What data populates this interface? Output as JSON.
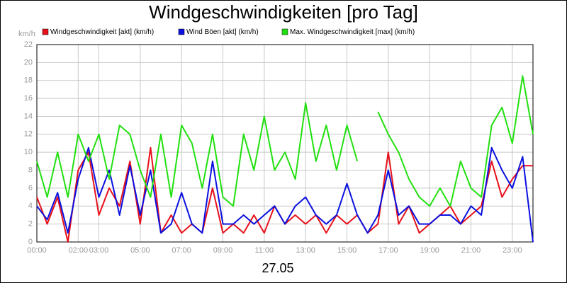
{
  "chart_data": {
    "type": "line",
    "title": "Windgeschwindigkeiten [pro Tag]",
    "y_unit": "km/h",
    "xlabel": "27.05",
    "x": [
      0,
      0.5,
      1,
      1.5,
      2,
      2.5,
      3,
      3.5,
      4,
      4.5,
      5,
      5.5,
      6,
      6.5,
      7,
      7.5,
      8,
      8.5,
      9,
      9.5,
      10,
      10.5,
      11,
      11.5,
      12,
      12.5,
      13,
      13.5,
      14,
      14.5,
      15,
      15.5,
      16,
      16.5,
      17,
      17.5,
      18,
      18.5,
      19,
      19.5,
      20,
      20.5,
      21,
      21.5,
      22,
      22.5,
      23,
      23.5,
      24
    ],
    "xlim": [
      0,
      24
    ],
    "xticks": [
      {
        "value": 0,
        "label": "00:00"
      },
      {
        "value": 2,
        "label": "02:00"
      },
      {
        "value": 3,
        "label": "03:00"
      },
      {
        "value": 5,
        "label": "05:00"
      },
      {
        "value": 7,
        "label": "07:00"
      },
      {
        "value": 9,
        "label": "09:00"
      },
      {
        "value": 11,
        "label": "11:00"
      },
      {
        "value": 13,
        "label": "13:00"
      },
      {
        "value": 15,
        "label": "15:00"
      },
      {
        "value": 17,
        "label": "17:00"
      },
      {
        "value": 19,
        "label": "19:00"
      },
      {
        "value": 21,
        "label": "21:00"
      },
      {
        "value": 23,
        "label": "23:00"
      }
    ],
    "ylim": [
      0,
      22
    ],
    "yticks": [
      0,
      2,
      4,
      6,
      8,
      10,
      12,
      14,
      16,
      18,
      20,
      22
    ],
    "grid": true,
    "series": [
      {
        "name": "Windgeschwindigkeit [akt] (km/h)",
        "color": "#e8101a",
        "values": [
          5,
          2,
          5,
          0,
          8,
          10,
          3,
          6,
          4,
          9,
          2,
          10.5,
          1,
          3,
          1,
          2,
          1,
          6,
          1,
          2,
          1,
          3,
          1,
          4,
          2,
          3,
          2,
          3,
          1,
          3,
          2,
          3,
          1,
          2,
          10,
          2,
          4,
          1,
          2,
          3,
          4,
          2,
          3,
          4,
          9,
          5,
          7,
          8.5,
          8.5
        ]
      },
      {
        "name": "Wind Böen [akt] (km/h)",
        "color": "#0a10e0",
        "values": [
          4,
          2.5,
          5.5,
          1,
          7,
          10.5,
          5,
          8,
          3,
          8.5,
          3,
          8,
          1,
          2,
          5.5,
          2,
          1,
          9,
          2,
          2,
          3,
          2,
          3,
          4,
          2,
          4,
          5,
          3,
          2,
          3,
          6.5,
          3,
          1,
          3,
          8,
          3,
          4,
          2,
          2,
          3,
          3,
          2,
          4,
          3,
          10.5,
          8,
          6,
          9.5,
          0
        ]
      },
      {
        "name": "Max. Windgeschwindigkeit [max] (km/h)",
        "color": "#22e010",
        "values": [
          9,
          5,
          10,
          5,
          12,
          9,
          12,
          7,
          13,
          12,
          8,
          5,
          12,
          5,
          13,
          11,
          6,
          12,
          5,
          4,
          12,
          8,
          14,
          8,
          10,
          7,
          15.5,
          9,
          13,
          8,
          13,
          9,
          null,
          14.5,
          12,
          10,
          7,
          5,
          4,
          6,
          4,
          9,
          6,
          5,
          13,
          15,
          11,
          18.5,
          12
        ]
      }
    ]
  }
}
